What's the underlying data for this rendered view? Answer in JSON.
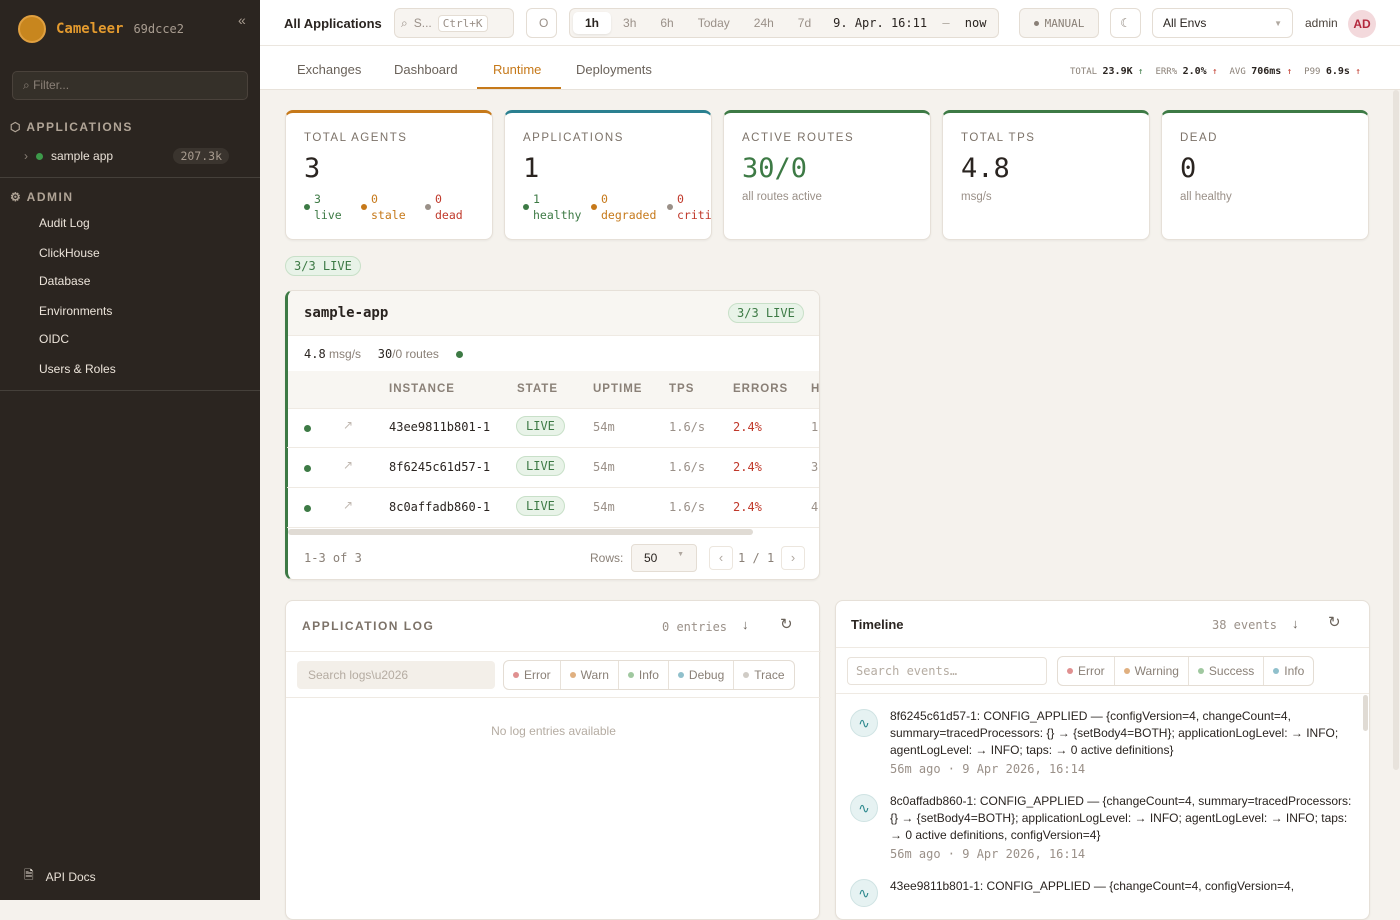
{
  "sidebar": {
    "brand": "Cameleer",
    "version": "69dcce2",
    "filter_placeholder": "Filter...",
    "applications_header": "APPLICATIONS",
    "app": {
      "name": "sample app",
      "count": "207.3k"
    },
    "admin_header": "ADMIN",
    "admin_items": [
      "Audit Log",
      "ClickHouse",
      "Database",
      "Environments",
      "OIDC",
      "Users & Roles"
    ],
    "api_docs": "API Docs"
  },
  "topbar": {
    "title": "All Applications",
    "search": "S...",
    "shortcut": "Ctrl+K",
    "status": "O",
    "ranges": [
      "1h",
      "3h",
      "6h",
      "Today",
      "24h",
      "7d"
    ],
    "active_range": "1h",
    "time_from": "9. Apr. 16:11",
    "time_sep": "—",
    "time_to": "now",
    "mode": "MANUAL",
    "env": "All Envs",
    "user": "admin",
    "avatar": "AD"
  },
  "tabs": [
    "Exchanges",
    "Dashboard",
    "Runtime",
    "Deployments"
  ],
  "active_tab": "Runtime",
  "kpis": [
    {
      "label": "TOTAL",
      "value": "23.9K",
      "trend": "up",
      "color": "#3d7a45"
    },
    {
      "label": "ERR%",
      "value": "2.0%",
      "trend": "up",
      "color": "#c0392b"
    },
    {
      "label": "AVG",
      "value": "706ms",
      "trend": "up",
      "color": "#c0392b"
    },
    {
      "label": "P99",
      "value": "6.9s",
      "trend": "up",
      "color": "#c0392b"
    }
  ],
  "stats": {
    "agents": {
      "label": "TOTAL AGENTS",
      "value": "3",
      "breakdown": [
        {
          "n": "3",
          "label": "live"
        },
        {
          "n": "0",
          "label": "stale"
        },
        {
          "n": "0",
          "label": "dead"
        }
      ]
    },
    "applications": {
      "label": "APPLICATIONS",
      "value": "1",
      "breakdown": [
        {
          "n": "1",
          "label": "healthy"
        },
        {
          "n": "0",
          "label": "degraded"
        },
        {
          "n": "0",
          "label": "criti"
        }
      ]
    },
    "routes": {
      "label": "ACTIVE ROUTES",
      "value": "30/0",
      "sub": "all routes active"
    },
    "tps": {
      "label": "TOTAL TPS",
      "value": "4.8",
      "sub": "msg/s"
    },
    "dead": {
      "label": "DEAD",
      "value": "0",
      "sub": "all healthy"
    }
  },
  "live_summary": "3/3 LIVE",
  "app_card": {
    "name": "sample-app",
    "badge": "3/3 LIVE",
    "tps": "4.8",
    "tps_unit": "msg/s",
    "routes": "30",
    "routes_rest": "/0 routes",
    "columns": [
      "INSTANCE",
      "STATE",
      "UPTIME",
      "TPS",
      "ERRORS",
      "H"
    ],
    "rows": [
      {
        "instance": "43ee9811b801-1",
        "state": "LIVE",
        "uptime": "54m",
        "tps": "1.6/s",
        "errors": "2.4%",
        "h": "1"
      },
      {
        "instance": "8f6245c61d57-1",
        "state": "LIVE",
        "uptime": "54m",
        "tps": "1.6/s",
        "errors": "2.4%",
        "h": "3"
      },
      {
        "instance": "8c0affadb860-1",
        "state": "LIVE",
        "uptime": "54m",
        "tps": "1.6/s",
        "errors": "2.4%",
        "h": "4"
      }
    ],
    "range": "1-3 of 3",
    "rows_label": "Rows:",
    "rows_value": "50",
    "page": "1",
    "page_sep": "/",
    "pages": "1"
  },
  "log": {
    "title": "APPLICATION LOG",
    "count": "0 entries",
    "search_placeholder": "Search logs\\u2026",
    "levels": [
      "Error",
      "Warn",
      "Info",
      "Debug",
      "Trace"
    ],
    "empty": "No log entries available"
  },
  "timeline": {
    "title": "Timeline",
    "count": "38 events",
    "search_placeholder": "Search events…",
    "filters": [
      "Error",
      "Warning",
      "Success",
      "Info"
    ],
    "events": [
      {
        "text": "8f6245c61d57-1: CONFIG_APPLIED — {configVersion=4, changeCount=4, summary=tracedProcessors: {} → {setBody4=BOTH}; applicationLogLevel: → INFO; agentLogLevel: → INFO; taps: → 0 active definitions}",
        "meta": "56m ago · 9 Apr 2026, 16:14"
      },
      {
        "text": "8c0affadb860-1: CONFIG_APPLIED — {changeCount=4, summary=tracedProcessors: {} → {setBody4=BOTH}; applicationLogLevel: → INFO; agentLogLevel: → INFO; taps: → 0 active definitions, configVersion=4}",
        "meta": "56m ago · 9 Apr 2026, 16:14"
      },
      {
        "text": "43ee9811b801-1: CONFIG_APPLIED — {changeCount=4, configVersion=4,",
        "meta": ""
      }
    ]
  },
  "colors": {
    "accent": "#c6791a",
    "live": "#3d7a45",
    "error": "#c0392b",
    "sidebar": "#2b2520"
  }
}
